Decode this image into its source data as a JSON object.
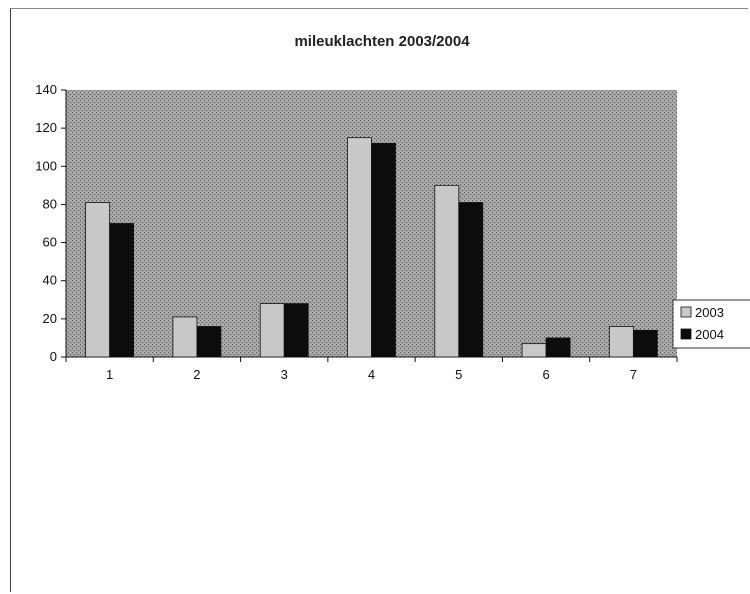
{
  "colors": {
    "plot_background": "#9a9a9a",
    "series_2003": "#c8c8c8",
    "series_2004": "#0c0c0c"
  },
  "chart_data": {
    "type": "bar",
    "title": "mileuklachten 2003/2004",
    "xlabel": "",
    "ylabel": "",
    "categories": [
      "1",
      "2",
      "3",
      "4",
      "5",
      "6",
      "7"
    ],
    "series": [
      {
        "name": "2003",
        "values": [
          81,
          21,
          28,
          115,
          90,
          7,
          16
        ]
      },
      {
        "name": "2004",
        "values": [
          70,
          16,
          28,
          112,
          81,
          10,
          14
        ]
      }
    ],
    "ylim": [
      0,
      140
    ],
    "yticks": [
      "0",
      "20",
      "40",
      "60",
      "80",
      "100",
      "120",
      "140"
    ],
    "grid": false,
    "legend": "right"
  }
}
